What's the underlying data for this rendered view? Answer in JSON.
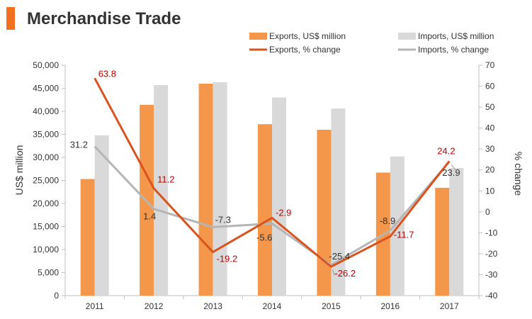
{
  "chart_data": {
    "type": "bar",
    "title": "Merchandise Trade",
    "categories": [
      "2011",
      "2012",
      "2013",
      "2014",
      "2015",
      "2016",
      "2017"
    ],
    "series": [
      {
        "name": "Exports, US$ million",
        "kind": "bar",
        "axis": "left",
        "color": "#F5974A",
        "values": [
          25300,
          41400,
          46000,
          37200,
          36000,
          26700,
          23400
        ]
      },
      {
        "name": "Imports, US$ million",
        "kind": "bar",
        "axis": "left",
        "color": "#D9D9D9",
        "values": [
          34800,
          45700,
          46300,
          43000,
          40600,
          30200,
          27700
        ]
      },
      {
        "name": "Exports, % change",
        "kind": "line",
        "axis": "right",
        "color": "#D9531E",
        "values": [
          63.8,
          11.2,
          -19.2,
          -2.9,
          -26.2,
          -11.7,
          24.2
        ]
      },
      {
        "name": "Imports, % change",
        "kind": "line",
        "axis": "right",
        "color": "#B5B5B5",
        "values": [
          31.2,
          1.4,
          -7.3,
          -5.6,
          -25.4,
          -8.9,
          23.9
        ]
      }
    ],
    "ylabel": "US$ million",
    "y2label": "% change",
    "ylim": [
      0,
      50000
    ],
    "y2lim": [
      -40,
      70
    ],
    "yticks": [
      "0",
      "5,000",
      "10,000",
      "15,000",
      "20,000",
      "25,000",
      "30,000",
      "35,000",
      "40,000",
      "45,000",
      "50,000"
    ],
    "y2ticks": [
      "-40",
      "-30",
      "-20",
      "-10",
      "0",
      "10",
      "20",
      "30",
      "40",
      "50",
      "60",
      "70"
    ],
    "export_change_labels": [
      "63.8",
      "11.2",
      "-19.2",
      "-2.9",
      "-26.2",
      "-11.7",
      "24.2"
    ],
    "import_change_labels": [
      "31.2",
      "1.4",
      "-7.3",
      "-5.6",
      "-25.4",
      "-8.9",
      "23.9"
    ],
    "export_label_color": "#C00000",
    "import_label_color": "#333333",
    "accent_color": "#F26F21",
    "grid": false,
    "legend": "top-right"
  }
}
